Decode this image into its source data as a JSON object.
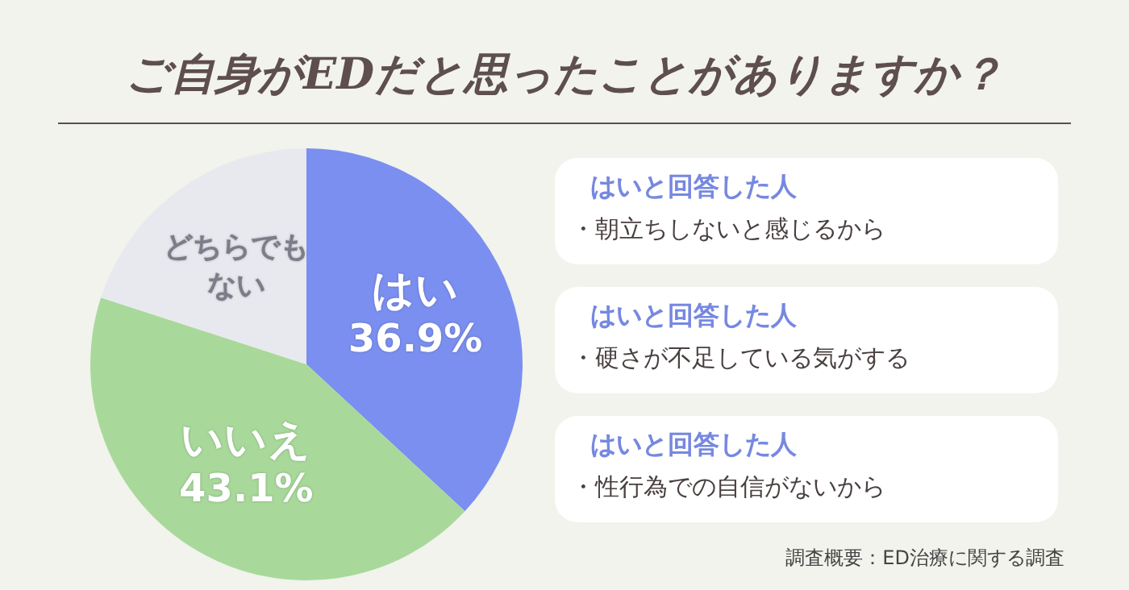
{
  "chart_data": {
    "type": "pie",
    "title": "ご自身がEDだと思ったことがありますか？",
    "categories": [
      "はい",
      "いいえ",
      "どちらでもない"
    ],
    "values": [
      36.9,
      43.1,
      20.0
    ],
    "colors": [
      "#7b8ff0",
      "#a8d99b",
      "#e8e9ee"
    ],
    "value_labels": [
      "36.9%",
      "43.1%",
      null
    ],
    "legend": false,
    "annotations": [
      "はいと回答した人",
      "・朝立ちしないと感じるから",
      "はいと回答した人",
      "・硬さが不足している気がする",
      "はいと回答した人",
      "・性行為での自信がないから",
      "調査概要：ED治療に関する調査"
    ]
  }
}
